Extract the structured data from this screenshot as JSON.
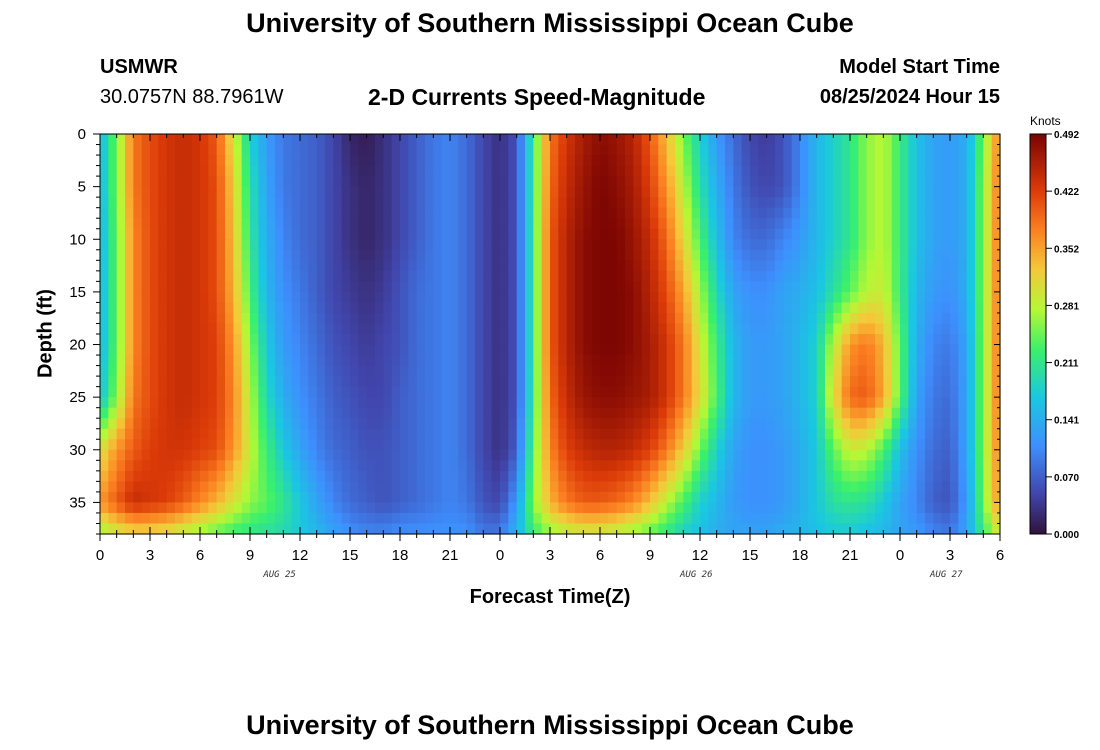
{
  "page": {
    "title_top": "University of Southern Mississippi Ocean Cube",
    "title_bottom": "University of Southern Mississippi Ocean Cube",
    "station": "USMWR",
    "coords": "30.0757N  88.7961W",
    "subtitle": "2-D Currents Speed-Magnitude",
    "model_label": "Model Start Time",
    "model_time": "08/25/2024 Hour 15"
  },
  "chart_data": {
    "type": "heatmap",
    "title": "2-D Currents Speed-Magnitude",
    "xlabel": "Forecast Time(Z)",
    "ylabel": "Depth (ft)",
    "x_ticks": [
      "0",
      "3",
      "6",
      "9",
      "12",
      "15",
      "18",
      "21",
      "0",
      "3",
      "6",
      "9",
      "12",
      "15",
      "18",
      "21",
      "0",
      "3",
      "6"
    ],
    "x_range_hours": [
      0,
      54
    ],
    "y_ticks": [
      "0",
      "5",
      "10",
      "15",
      "20",
      "25",
      "30",
      "35"
    ],
    "y_range_ft": [
      0,
      38
    ],
    "date_labels": [
      {
        "label": "AUG 25",
        "hour": 11
      },
      {
        "label": "AUG 26",
        "hour": 36
      },
      {
        "label": "AUG 27",
        "hour": 51
      }
    ],
    "colorbar": {
      "unit": "Knots",
      "ticks": [
        "0.492",
        "0.422",
        "0.352",
        "0.281",
        "0.211",
        "0.141",
        "0.070",
        "0.000"
      ],
      "range": [
        0.0,
        0.492
      ]
    },
    "x_hours": [
      0,
      1,
      2,
      3,
      4,
      5,
      6,
      7,
      8,
      9,
      10,
      11,
      12,
      13,
      14,
      15,
      16,
      17,
      18,
      19,
      20,
      21,
      22,
      23,
      24,
      25,
      26,
      27,
      28,
      29,
      30,
      31,
      32,
      33,
      34,
      35,
      36,
      37,
      38,
      39,
      40,
      41,
      42,
      43,
      44,
      45,
      46,
      47,
      48,
      49,
      50,
      51,
      52,
      53,
      54
    ],
    "depths_ft": [
      0,
      5,
      10,
      15,
      20,
      25,
      30,
      35,
      38
    ],
    "speed_knots": [
      [
        0.15,
        0.25,
        0.38,
        0.41,
        0.43,
        0.44,
        0.43,
        0.4,
        0.3,
        0.18,
        0.12,
        0.09,
        0.08,
        0.07,
        0.05,
        0.02,
        0.01,
        0.03,
        0.05,
        0.07,
        0.09,
        0.1,
        0.08,
        0.05,
        0.03,
        0.06,
        0.22,
        0.38,
        0.43,
        0.46,
        0.48,
        0.47,
        0.45,
        0.4,
        0.33,
        0.25,
        0.18,
        0.12,
        0.08,
        0.05,
        0.04,
        0.06,
        0.1,
        0.15,
        0.18,
        0.21,
        0.26,
        0.28,
        0.22,
        0.16,
        0.13,
        0.12,
        0.14,
        0.25,
        0.38
      ],
      [
        0.15,
        0.25,
        0.38,
        0.41,
        0.43,
        0.44,
        0.43,
        0.41,
        0.32,
        0.2,
        0.13,
        0.09,
        0.08,
        0.07,
        0.05,
        0.03,
        0.02,
        0.03,
        0.05,
        0.07,
        0.09,
        0.1,
        0.08,
        0.05,
        0.03,
        0.06,
        0.22,
        0.39,
        0.44,
        0.47,
        0.49,
        0.48,
        0.46,
        0.42,
        0.36,
        0.28,
        0.2,
        0.14,
        0.09,
        0.06,
        0.05,
        0.06,
        0.1,
        0.15,
        0.18,
        0.21,
        0.26,
        0.28,
        0.22,
        0.16,
        0.13,
        0.12,
        0.14,
        0.26,
        0.39
      ],
      [
        0.15,
        0.24,
        0.37,
        0.41,
        0.43,
        0.44,
        0.43,
        0.41,
        0.33,
        0.21,
        0.14,
        0.1,
        0.08,
        0.07,
        0.05,
        0.03,
        0.02,
        0.03,
        0.05,
        0.07,
        0.09,
        0.1,
        0.08,
        0.05,
        0.03,
        0.06,
        0.22,
        0.4,
        0.45,
        0.48,
        0.49,
        0.49,
        0.47,
        0.44,
        0.39,
        0.31,
        0.23,
        0.16,
        0.1,
        0.08,
        0.08,
        0.1,
        0.12,
        0.15,
        0.18,
        0.21,
        0.26,
        0.28,
        0.22,
        0.16,
        0.13,
        0.12,
        0.14,
        0.26,
        0.39
      ],
      [
        0.15,
        0.24,
        0.37,
        0.41,
        0.43,
        0.44,
        0.43,
        0.41,
        0.34,
        0.23,
        0.15,
        0.11,
        0.09,
        0.07,
        0.05,
        0.04,
        0.03,
        0.04,
        0.06,
        0.08,
        0.09,
        0.1,
        0.08,
        0.05,
        0.03,
        0.06,
        0.22,
        0.4,
        0.45,
        0.48,
        0.49,
        0.49,
        0.48,
        0.45,
        0.41,
        0.35,
        0.27,
        0.19,
        0.13,
        0.11,
        0.11,
        0.13,
        0.14,
        0.16,
        0.2,
        0.24,
        0.28,
        0.29,
        0.22,
        0.15,
        0.12,
        0.11,
        0.14,
        0.26,
        0.39
      ],
      [
        0.15,
        0.24,
        0.37,
        0.41,
        0.43,
        0.44,
        0.43,
        0.42,
        0.36,
        0.26,
        0.17,
        0.12,
        0.1,
        0.08,
        0.06,
        0.05,
        0.04,
        0.05,
        0.06,
        0.08,
        0.09,
        0.1,
        0.08,
        0.05,
        0.03,
        0.06,
        0.22,
        0.4,
        0.45,
        0.48,
        0.49,
        0.49,
        0.48,
        0.46,
        0.43,
        0.38,
        0.3,
        0.22,
        0.15,
        0.12,
        0.12,
        0.13,
        0.15,
        0.18,
        0.28,
        0.36,
        0.38,
        0.34,
        0.24,
        0.14,
        0.1,
        0.09,
        0.13,
        0.26,
        0.39
      ],
      [
        0.16,
        0.26,
        0.38,
        0.41,
        0.43,
        0.44,
        0.43,
        0.42,
        0.37,
        0.28,
        0.19,
        0.14,
        0.11,
        0.09,
        0.07,
        0.06,
        0.05,
        0.05,
        0.07,
        0.08,
        0.09,
        0.1,
        0.08,
        0.05,
        0.03,
        0.06,
        0.22,
        0.39,
        0.44,
        0.47,
        0.48,
        0.48,
        0.47,
        0.46,
        0.43,
        0.38,
        0.31,
        0.23,
        0.15,
        0.12,
        0.12,
        0.13,
        0.15,
        0.18,
        0.31,
        0.39,
        0.4,
        0.35,
        0.24,
        0.13,
        0.09,
        0.08,
        0.13,
        0.26,
        0.39
      ],
      [
        0.3,
        0.36,
        0.4,
        0.42,
        0.43,
        0.43,
        0.42,
        0.41,
        0.36,
        0.29,
        0.22,
        0.17,
        0.13,
        0.1,
        0.08,
        0.07,
        0.06,
        0.06,
        0.07,
        0.08,
        0.09,
        0.1,
        0.08,
        0.05,
        0.03,
        0.07,
        0.24,
        0.37,
        0.42,
        0.44,
        0.45,
        0.45,
        0.44,
        0.42,
        0.38,
        0.32,
        0.25,
        0.18,
        0.13,
        0.11,
        0.11,
        0.12,
        0.14,
        0.17,
        0.24,
        0.29,
        0.28,
        0.23,
        0.16,
        0.11,
        0.08,
        0.07,
        0.13,
        0.26,
        0.38
      ],
      [
        0.36,
        0.4,
        0.44,
        0.43,
        0.42,
        0.4,
        0.37,
        0.34,
        0.3,
        0.26,
        0.24,
        0.21,
        0.17,
        0.13,
        0.1,
        0.08,
        0.07,
        0.06,
        0.07,
        0.08,
        0.09,
        0.1,
        0.09,
        0.06,
        0.05,
        0.12,
        0.26,
        0.34,
        0.38,
        0.4,
        0.4,
        0.39,
        0.37,
        0.33,
        0.28,
        0.23,
        0.18,
        0.15,
        0.12,
        0.11,
        0.11,
        0.12,
        0.14,
        0.17,
        0.2,
        0.21,
        0.2,
        0.17,
        0.13,
        0.1,
        0.07,
        0.06,
        0.12,
        0.25,
        0.37
      ],
      [
        0.26,
        0.29,
        0.31,
        0.31,
        0.3,
        0.28,
        0.26,
        0.24,
        0.22,
        0.21,
        0.2,
        0.19,
        0.17,
        0.15,
        0.13,
        0.11,
        0.1,
        0.1,
        0.11,
        0.11,
        0.11,
        0.11,
        0.11,
        0.09,
        0.09,
        0.15,
        0.22,
        0.26,
        0.28,
        0.29,
        0.29,
        0.28,
        0.26,
        0.24,
        0.21,
        0.18,
        0.16,
        0.14,
        0.13,
        0.13,
        0.13,
        0.14,
        0.15,
        0.16,
        0.17,
        0.17,
        0.16,
        0.15,
        0.13,
        0.12,
        0.1,
        0.09,
        0.13,
        0.22,
        0.3
      ]
    ]
  }
}
